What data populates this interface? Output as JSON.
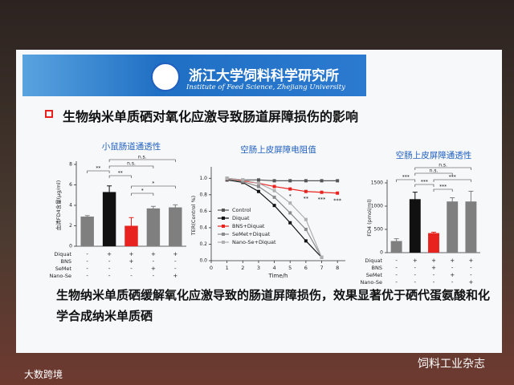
{
  "header": {
    "title": "浙江大学饲料科学研究所",
    "subtitle": "Institute of Feed Science, Zhejiang University"
  },
  "slide_title": "生物纳米单质硒对氧化应激导致肠道屏障损伤的影响",
  "conclusion": "生物纳米单质硒缓解氧化应激导致的肠道屏障损伤，效果显著优于硒代蛋氨酸和化学合成纳米单质硒",
  "watermarks": [
    "饲料工业杂志",
    "大数跨境"
  ],
  "chart_data": [
    {
      "type": "bar",
      "title": "小鼠肠道通透性",
      "y_label": "血清FD4含量(μg/ml)",
      "values": [
        2.9,
        5.3,
        2.0,
        3.7,
        3.8
      ],
      "errors": [
        0.1,
        0.6,
        0.8,
        0.2,
        0.25
      ],
      "colors": [
        "#7f7f7f",
        "#111111",
        "#e8231f",
        "#7f7f7f",
        "#7f7f7f"
      ],
      "ylim": [
        0,
        8
      ],
      "yticks": [
        0,
        2,
        4,
        6,
        8
      ],
      "treatments": [
        {
          "name": "Diquat",
          "signs": [
            "-",
            "+",
            "+",
            "+",
            "+"
          ]
        },
        {
          "name": "BNS",
          "signs": [
            "-",
            "-",
            "+",
            "-",
            "-"
          ]
        },
        {
          "name": "SeMet",
          "signs": [
            "-",
            "-",
            "-",
            "+",
            "-"
          ]
        },
        {
          "name": "Nano-Se",
          "signs": [
            "-",
            "-",
            "-",
            "-",
            "+"
          ]
        }
      ],
      "annotations": [
        "n.s.",
        "n.s.",
        "**",
        "**",
        "*",
        "*"
      ]
    },
    {
      "type": "line",
      "title": "空肠上皮屏障电阻值",
      "y_label": "TER(Control %)",
      "x_label": "Time/h",
      "x": [
        1,
        2,
        3,
        4,
        5,
        6,
        7,
        8
      ],
      "series": [
        {
          "name": "Control",
          "color": "#555555",
          "values": [
            1.0,
            0.98,
            0.98,
            0.97,
            0.97,
            0.97,
            0.97,
            0.97
          ]
        },
        {
          "name": "Diquat",
          "color": "#111111",
          "values": [
            0.98,
            0.95,
            0.84,
            0.67,
            0.46,
            0.24,
            0.04,
            null
          ]
        },
        {
          "name": "BNS+Diquat",
          "color": "#e8231f",
          "values": [
            0.99,
            0.97,
            0.94,
            0.9,
            0.87,
            0.84,
            0.83,
            0.82
          ]
        },
        {
          "name": "SeMet+Diquat",
          "color": "#8a8a8a",
          "values": [
            0.99,
            0.96,
            0.9,
            0.77,
            0.58,
            0.38,
            0.04,
            null
          ]
        },
        {
          "name": "Nano-Se+Diquat",
          "color": "#b0b0b0",
          "values": [
            1.0,
            0.98,
            0.94,
            0.85,
            0.7,
            0.5,
            0.04,
            null
          ]
        }
      ],
      "xlim": [
        0,
        8.5
      ],
      "xticks": [
        0,
        1,
        2,
        3,
        4,
        5,
        6,
        7,
        8
      ],
      "ylim": [
        0,
        1.1
      ],
      "yticks": [
        {
          "value": 0,
          "label": "0.0"
        },
        0.2,
        0.4,
        0.6,
        0.8,
        {
          "value": 1,
          "label": "1.0"
        }
      ],
      "annotations": [
        "*",
        "**",
        "***",
        "***"
      ]
    },
    {
      "type": "bar",
      "title": "空肠上皮屏障通透性",
      "y_label": "FD4 (pmol/ml)",
      "values": [
        250,
        1150,
        420,
        1100,
        1100
      ],
      "errors": [
        50,
        150,
        20,
        80,
        220
      ],
      "colors": [
        "#7f7f7f",
        "#111111",
        "#e8231f",
        "#7f7f7f",
        "#7f7f7f"
      ],
      "ylim": [
        0,
        1500
      ],
      "yticks": [
        0,
        500,
        1000,
        1500
      ],
      "treatments": [
        {
          "name": "Diquat",
          "signs": [
            "-",
            "+",
            "+",
            "+",
            "+"
          ]
        },
        {
          "name": "BNS",
          "signs": [
            "-",
            "-",
            "+",
            "-",
            "-"
          ]
        },
        {
          "name": "SeMet",
          "signs": [
            "-",
            "-",
            "-",
            "+",
            "-"
          ]
        },
        {
          "name": "Nano-Se",
          "signs": [
            "-",
            "-",
            "-",
            "-",
            "+"
          ]
        }
      ],
      "annotations": [
        "n.s.",
        "n.s.",
        "***",
        "***",
        "***",
        "***"
      ]
    }
  ]
}
